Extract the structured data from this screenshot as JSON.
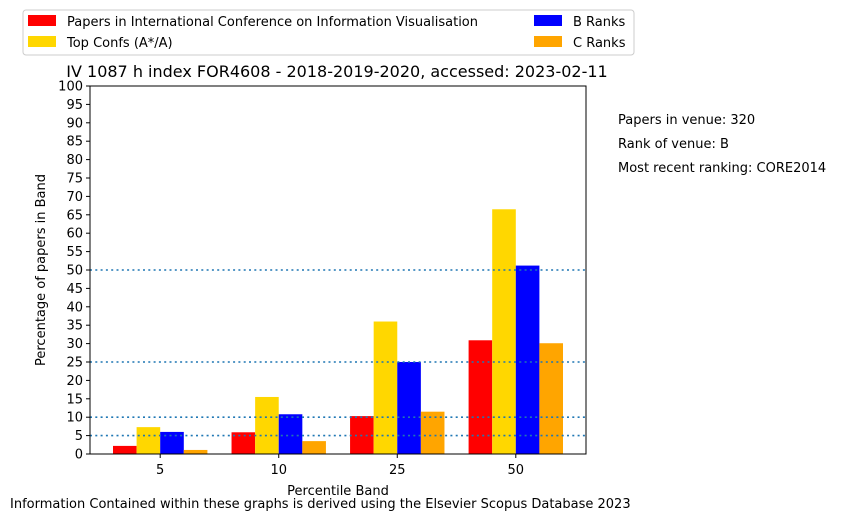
{
  "chart_data": {
    "type": "bar",
    "title": "IV 1087 h index FOR4608 - 2018-2019-2020, accessed: 2023-02-11",
    "xlabel": "Percentile Band",
    "ylabel": "Percentage of papers in Band",
    "categories": [
      "5",
      "10",
      "25",
      "50"
    ],
    "ylim": [
      0,
      100
    ],
    "yticks": [
      0,
      5,
      10,
      15,
      20,
      25,
      30,
      35,
      40,
      45,
      50,
      55,
      60,
      65,
      70,
      75,
      80,
      85,
      90,
      95,
      100
    ],
    "series": [
      {
        "name": "Papers in International Conference on Information Visualisation",
        "color": "#ff0000",
        "values": [
          2.2,
          5.9,
          10.3,
          30.9
        ]
      },
      {
        "name": "Top Confs (A*/A)",
        "color": "#ffd700",
        "values": [
          7.3,
          15.5,
          36.0,
          66.5
        ]
      },
      {
        "name": "B Ranks",
        "color": "#0000ff",
        "values": [
          6.0,
          10.8,
          25.0,
          51.2
        ]
      },
      {
        "name": "C Ranks",
        "color": "#ffa500",
        "values": [
          1.1,
          3.5,
          11.5,
          30.1
        ]
      }
    ],
    "reference_lines": [
      5,
      10,
      25,
      50
    ],
    "reference_line_color": "#1f77b4",
    "legend_position": "top-outside",
    "annotations": [
      "Papers in venue: 320",
      "Rank of venue: B",
      "Most recent ranking: CORE2014"
    ],
    "footer": "Information Contained within these graphs is derived using the Elsevier Scopus Database 2023"
  }
}
